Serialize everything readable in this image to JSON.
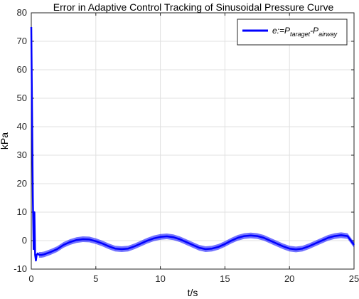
{
  "chart_data": {
    "type": "line",
    "title": "Error in Adaptive Control Tracking of Sinusoidal Pressure Curve",
    "xlabel": "t/s",
    "ylabel": "kPa",
    "xlim": [
      0,
      25
    ],
    "ylim": [
      -10,
      80
    ],
    "x_ticks": [
      "0",
      "5",
      "10",
      "15",
      "20",
      "25"
    ],
    "y_ticks": [
      "-10",
      "0",
      "10",
      "20",
      "30",
      "40",
      "50",
      "60",
      "70",
      "80"
    ],
    "grid": true,
    "legend_position": "top-right",
    "legend": {
      "prefix": "e:=P",
      "sub1": "taraget",
      "mid": "-P",
      "sub2": "airway"
    },
    "series": [
      {
        "color": "#0000ff",
        "x": [
          0,
          0.06,
          0.12,
          0.18,
          0.24,
          0.3,
          0.36,
          0.42,
          0.5,
          0.6,
          0.8,
          1.0,
          1.5,
          2.0,
          2.5,
          3.0,
          3.5,
          4.0,
          4.5,
          5.0,
          5.5,
          6.0,
          6.5,
          7.0,
          7.5,
          8.0,
          8.5,
          9.0,
          9.5,
          10.0,
          10.5,
          11.0,
          11.5,
          12.0,
          12.5,
          13.0,
          13.5,
          14.0,
          14.5,
          15.0,
          15.5,
          16.0,
          16.5,
          17.0,
          17.5,
          18.0,
          18.5,
          19.0,
          19.5,
          20.0,
          20.5,
          21.0,
          21.5,
          22.0,
          22.5,
          23.0,
          23.5,
          24.0,
          24.5,
          25.0
        ],
        "y": [
          75,
          45,
          15,
          -3,
          10,
          -5,
          -7,
          -5,
          -4.5,
          -5,
          -5,
          -4.8,
          -4,
          -3,
          -1.5,
          -0.5,
          0.2,
          0.5,
          0.4,
          -0.2,
          -1,
          -2,
          -2.8,
          -3,
          -2.8,
          -2,
          -1,
          0,
          0.8,
          1.3,
          1.5,
          1.2,
          0.5,
          -0.5,
          -1.5,
          -2.5,
          -3,
          -2.8,
          -2.2,
          -1.2,
          0,
          1,
          1.6,
          1.8,
          1.6,
          1,
          0,
          -1,
          -2,
          -2.8,
          -3.1,
          -2.8,
          -2,
          -1,
          0,
          1,
          1.6,
          1.9,
          1.6,
          -1.5
        ]
      }
    ]
  }
}
